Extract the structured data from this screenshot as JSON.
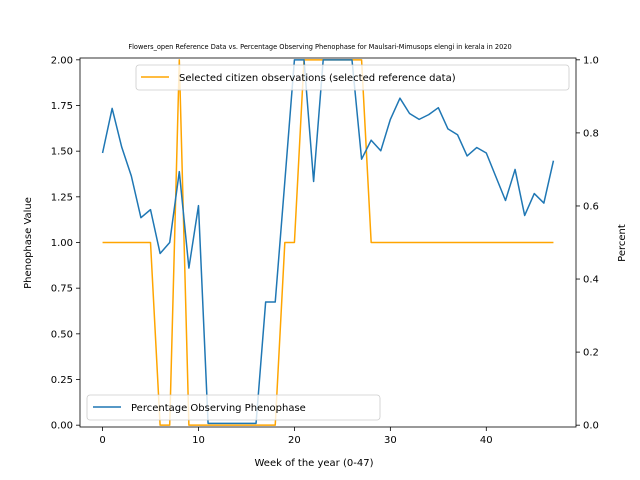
{
  "chart_data": {
    "type": "line",
    "title": "Flowers_open Reference Data vs. Percentage Observing Phenophase for Maulsari-Mimusops elengi in kerala in 2020",
    "xlabel": "Week of the year (0-47)",
    "ylabel_left": "Phenophase Value",
    "ylabel_right": "Percent",
    "xlim": [
      -2.35,
      49.35
    ],
    "ylim_left": [
      -0.01,
      2.01
    ],
    "ylim_right": [
      -0.005,
      1.005
    ],
    "x_ticks": [
      0,
      10,
      20,
      30,
      40
    ],
    "y_ticks_left": [
      "0.00",
      "0.25",
      "0.50",
      "0.75",
      "1.00",
      "1.25",
      "1.50",
      "1.75",
      "2.00"
    ],
    "y_ticks_right": [
      "0.0",
      "0.2",
      "0.4",
      "0.6",
      "0.8",
      "1.0"
    ],
    "grid": false,
    "series": [
      {
        "name": "Selected citizen observations (selected reference data)",
        "axis": "left",
        "color": "#ffa500",
        "legend_position": "top-right",
        "x": [
          0,
          1,
          2,
          3,
          4,
          5,
          6,
          7,
          8,
          9,
          10,
          11,
          12,
          13,
          14,
          15,
          16,
          17,
          18,
          19,
          20,
          21,
          22,
          23,
          24,
          25,
          26,
          27,
          28,
          29,
          30,
          31,
          32,
          33,
          34,
          35,
          36,
          37,
          38,
          39,
          40,
          41,
          42,
          43,
          44,
          45,
          46,
          47
        ],
        "values": [
          1,
          1,
          1,
          1,
          1,
          1,
          0,
          0,
          2,
          0,
          0,
          0,
          0,
          0,
          0,
          0,
          0,
          0,
          0,
          1,
          1,
          2,
          2,
          2,
          2,
          2,
          2,
          2,
          1,
          1,
          1,
          1,
          1,
          1,
          1,
          1,
          1,
          1,
          1,
          1,
          1,
          1,
          1,
          1,
          1,
          1,
          1,
          1
        ]
      },
      {
        "name": "Percentage Observing Phenophase",
        "axis": "right",
        "color": "#1f77b4",
        "legend_position": "bottom-left",
        "x": [
          0,
          1,
          2,
          3,
          4,
          5,
          6,
          7,
          8,
          9,
          10,
          11,
          12,
          13,
          14,
          15,
          16,
          17,
          18,
          19,
          20,
          21,
          22,
          23,
          24,
          25,
          26,
          27,
          28,
          29,
          30,
          31,
          32,
          33,
          34,
          35,
          36,
          37,
          38,
          39,
          40,
          41,
          42,
          43,
          44,
          45,
          46,
          47
        ],
        "values": [
          0.745,
          0.867,
          0.761,
          0.682,
          0.568,
          0.59,
          0.47,
          0.5,
          0.694,
          0.43,
          0.601,
          0.005,
          0.005,
          0.005,
          0.005,
          0.005,
          0.005,
          0.337,
          0.337,
          0.667,
          1.0,
          1.0,
          0.667,
          1.0,
          1.0,
          1.0,
          1.0,
          0.728,
          0.78,
          0.751,
          0.837,
          0.895,
          0.853,
          0.837,
          0.85,
          0.869,
          0.811,
          0.795,
          0.737,
          0.76,
          0.745,
          0.68,
          0.615,
          0.7,
          0.574,
          0.634,
          0.608,
          0.724
        ]
      }
    ]
  }
}
